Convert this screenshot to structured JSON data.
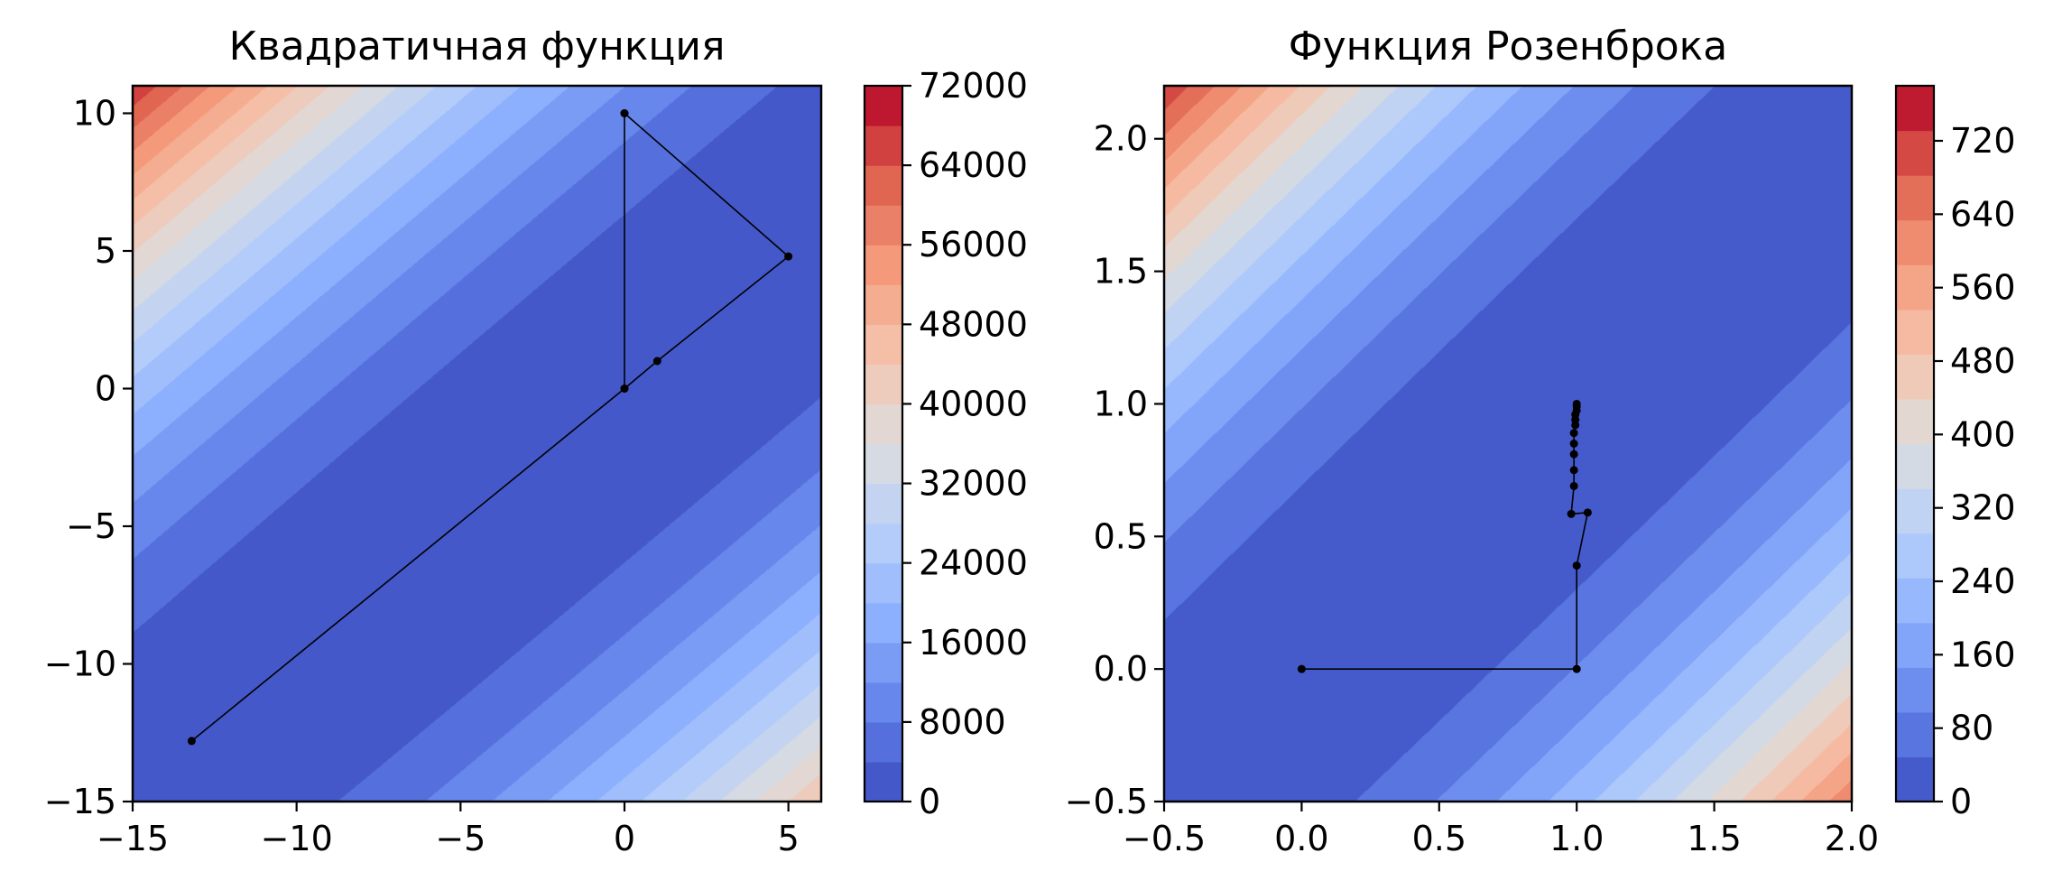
{
  "chart_data": [
    {
      "type": "contour",
      "title": "Квадратичная функция",
      "xlim": [
        -15,
        6
      ],
      "ylim": [
        -15,
        11
      ],
      "xticks": [
        -15,
        -10,
        -5,
        0,
        5
      ],
      "yticks": [
        -15,
        -10,
        -5,
        0,
        5,
        10
      ],
      "xtick_labels": [
        "−15",
        "−10",
        "−5",
        "0",
        "5"
      ],
      "ytick_labels": [
        "−15",
        "−10",
        "−5",
        "0",
        "5",
        "10"
      ],
      "colorbar": {
        "range": [
          0,
          72000
        ],
        "ticks": [
          0,
          8000,
          16000,
          24000,
          32000,
          40000,
          48000,
          56000,
          64000,
          72000
        ],
        "tick_labels": [
          "0",
          "8000",
          "16000",
          "24000",
          "32000",
          "40000",
          "48000",
          "56000",
          "64000",
          "72000"
        ],
        "levels": 18
      },
      "colormap": "coolwarm",
      "path": [
        [
          0,
          10
        ],
        [
          5,
          4.8
        ],
        [
          1,
          1
        ],
        [
          0,
          0
        ],
        [
          -13.2,
          -12.8
        ],
        [
          0,
          0
        ],
        [
          0,
          10
        ]
      ]
    },
    {
      "type": "contour",
      "title": "Функция Розенброка",
      "xlim": [
        -0.5,
        2.0
      ],
      "ylim": [
        -0.5,
        2.2
      ],
      "xticks": [
        -0.5,
        0.0,
        0.5,
        1.0,
        1.5,
        2.0
      ],
      "yticks": [
        -0.5,
        0.0,
        0.5,
        1.0,
        1.5,
        2.0
      ],
      "xtick_labels": [
        "−0.5",
        "0.0",
        "0.5",
        "1.0",
        "1.5",
        "2.0"
      ],
      "ytick_labels": [
        "−0.5",
        "0.0",
        "0.5",
        "1.0",
        "1.5",
        "2.0"
      ],
      "colorbar": {
        "range": [
          0,
          780
        ],
        "ticks": [
          0,
          80,
          160,
          240,
          320,
          400,
          480,
          560,
          640,
          720
        ],
        "tick_labels": [
          "0",
          "80",
          "160",
          "240",
          "320",
          "400",
          "480",
          "560",
          "640",
          "720"
        ],
        "levels": 16
      },
      "colormap": "coolwarm",
      "path": [
        [
          0,
          0
        ],
        [
          1,
          0
        ],
        [
          1,
          0.39
        ],
        [
          1.04,
          0.59
        ],
        [
          0.98,
          0.585
        ],
        [
          0.99,
          0.69
        ],
        [
          0.99,
          0.75
        ],
        [
          0.99,
          0.81
        ],
        [
          0.99,
          0.85
        ],
        [
          0.99,
          0.89
        ],
        [
          0.995,
          0.92
        ],
        [
          0.995,
          0.94
        ],
        [
          0.995,
          0.96
        ],
        [
          1.0,
          0.975
        ],
        [
          1.0,
          0.99
        ],
        [
          1.0,
          1.0
        ]
      ]
    }
  ]
}
